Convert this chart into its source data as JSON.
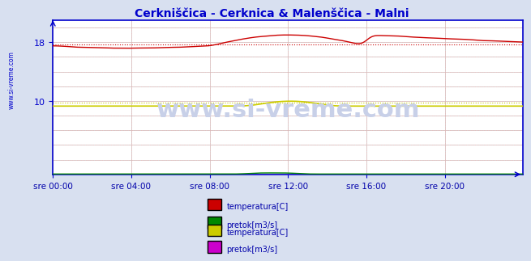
{
  "title": "Cerkniščica - Cerknica & Malenščica - Malni",
  "title_color": "#0000cc",
  "bg_color": "#d8e0f0",
  "plot_bg_color": "#ffffff",
  "grid_color_major": "#c0c0c0",
  "grid_color_minor": "#e0c0c0",
  "xlabel_color": "#0000aa",
  "ylabel_ticks": [
    0,
    2,
    4,
    6,
    8,
    10,
    12,
    14,
    16,
    18,
    20
  ],
  "ylim": [
    0,
    21
  ],
  "xtick_labels": [
    "sre 00:00",
    "sre 04:00",
    "sre 08:00",
    "sre 12:00",
    "sre 16:00",
    "sre 20:00"
  ],
  "xtick_positions": [
    0,
    4,
    8,
    12,
    16,
    20
  ],
  "xlim": [
    0,
    24
  ],
  "watermark": "www.si-vreme.com",
  "watermark_color": "#c8d0e8",
  "series": {
    "cerknica_temp": {
      "color": "#cc0000",
      "avg_color": "#cc0000",
      "avg_style": "dotted",
      "description": "temperatura[C] (Cerkniščica)"
    },
    "cerknica_pretok": {
      "color": "#008800",
      "description": "pretok[m3/s] (Cerkniščica)"
    },
    "malni_temp": {
      "color": "#cccc00",
      "description": "temperatura[C] (Malenščica)"
    },
    "malni_pretok": {
      "color": "#cc00cc",
      "description": "pretok[m3/s] (Malenščica)"
    }
  },
  "legend": [
    {
      "label": "temperatura[C]",
      "color": "#cc0000"
    },
    {
      "label": "pretok[m3/s]",
      "color": "#008800"
    },
    {
      "label": "temperatura[C]",
      "color": "#cccc00"
    },
    {
      "label": "pretok[m3/s]",
      "color": "#cc00cc"
    }
  ],
  "axis_color": "#0000cc",
  "tick_color": "#0000cc",
  "sidebar_text": "www.si-vreme.com",
  "sidebar_color": "#0000cc"
}
